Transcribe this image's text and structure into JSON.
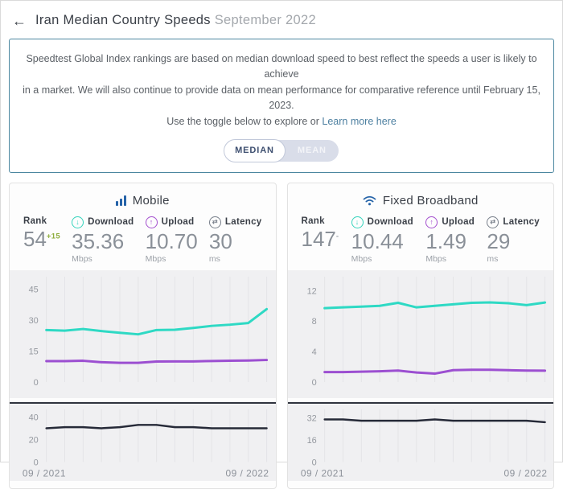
{
  "header": {
    "back_icon": "←",
    "title": "Iran Median Country Speeds",
    "subtitle": "September 2022"
  },
  "notice": {
    "line1": "Speedtest Global Index rankings are based on median download speed to best reflect the speeds a user is likely to achieve",
    "line2": "in a market. We will also continue to provide data on mean performance for comparative reference until February 15, 2023.",
    "line3": "Use the toggle below to explore or",
    "link": "Learn more here",
    "toggle": {
      "median": "MEDIAN",
      "mean": "MEAN",
      "selected": "MEDIAN"
    }
  },
  "icons": {
    "download": "↓",
    "upload": "↑",
    "latency": "⇄"
  },
  "colors": {
    "download_teal": "#2ED9C4",
    "upload_purple": "#9C4FD1",
    "latency_dark": "#262A38",
    "brand_blue": "#2563A8",
    "rank_delta_green": "#8FAE3E",
    "notice_border_blue": "#4C87A0"
  },
  "panels": [
    {
      "title": "Mobile",
      "icon": "bar-chart-icon",
      "stats": {
        "rank": {
          "label": "Rank",
          "value": "54",
          "delta": "+15"
        },
        "download": {
          "label": "Download",
          "value": "35.36",
          "unit": "Mbps"
        },
        "upload": {
          "label": "Upload",
          "value": "10.70",
          "unit": "Mbps"
        },
        "latency": {
          "label": "Latency",
          "value": "30",
          "unit": "ms"
        }
      }
    },
    {
      "title": "Fixed Broadband",
      "icon": "wifi-icon",
      "stats": {
        "rank": {
          "label": "Rank",
          "value": "147",
          "delta": "-"
        },
        "download": {
          "label": "Download",
          "value": "10.44",
          "unit": "Mbps"
        },
        "upload": {
          "label": "Upload",
          "value": "1.49",
          "unit": "Mbps"
        },
        "latency": {
          "label": "Latency",
          "value": "29",
          "unit": "ms"
        }
      }
    }
  ],
  "chart_data": [
    {
      "type": "line",
      "title": "Mobile median speeds (Mbps), 09/2021 - 09/2022",
      "x_range": [
        "09 / 2021",
        "09 / 2022"
      ],
      "ylim": [
        0,
        48
      ],
      "yticks": [
        0,
        15,
        30,
        45
      ],
      "grid": true,
      "series": [
        {
          "name": "Download (Mbps)",
          "color": "#2ED9C4",
          "values": [
            25.2,
            24.9,
            25.7,
            24.7,
            23.9,
            23.1,
            25.2,
            25.3,
            26.2,
            27.2,
            27.8,
            28.6,
            35.36
          ]
        },
        {
          "name": "Upload (Mbps)",
          "color": "#9C4FD1",
          "values": [
            10.1,
            10.1,
            10.3,
            9.6,
            9.3,
            9.3,
            9.9,
            10.0,
            10.0,
            10.2,
            10.3,
            10.4,
            10.7
          ]
        }
      ]
    },
    {
      "type": "line",
      "title": "Mobile median latency (ms), 09/2021 - 09/2022",
      "xlabels": [
        "09 / 2021",
        "09 / 2022"
      ],
      "ylim": [
        0,
        44
      ],
      "yticks": [
        0,
        20,
        40
      ],
      "grid": true,
      "series": [
        {
          "name": "Latency (ms)",
          "color": "#262A38",
          "values": [
            30,
            31,
            31,
            30,
            31,
            33,
            33,
            31,
            31,
            30,
            30,
            30,
            30
          ]
        }
      ]
    },
    {
      "type": "line",
      "title": "Fixed broadband median speeds (Mbps), 09/2021 - 09/2022",
      "x_range": [
        "09 / 2021",
        "09 / 2022"
      ],
      "ylim": [
        0,
        13
      ],
      "yticks": [
        0,
        4,
        8,
        12
      ],
      "grid": true,
      "series": [
        {
          "name": "Download (Mbps)",
          "color": "#2ED9C4",
          "values": [
            9.7,
            9.8,
            9.9,
            10.0,
            10.4,
            9.8,
            10.0,
            10.2,
            10.4,
            10.45,
            10.35,
            10.1,
            10.44
          ]
        },
        {
          "name": "Upload (Mbps)",
          "color": "#9C4FD1",
          "values": [
            1.3,
            1.3,
            1.35,
            1.4,
            1.5,
            1.25,
            1.1,
            1.55,
            1.6,
            1.6,
            1.55,
            1.5,
            1.49
          ]
        }
      ]
    },
    {
      "type": "line",
      "title": "Fixed broadband median latency (ms), 09/2021 - 09/2022",
      "xlabels": [
        "09 / 2021",
        "09 / 2022"
      ],
      "ylim": [
        0,
        36
      ],
      "yticks": [
        0,
        16,
        32
      ],
      "grid": true,
      "series": [
        {
          "name": "Latency (ms)",
          "color": "#262A38",
          "values": [
            31,
            31,
            30,
            30,
            30,
            30,
            31,
            30,
            30,
            30,
            30,
            30,
            29
          ]
        }
      ]
    }
  ]
}
